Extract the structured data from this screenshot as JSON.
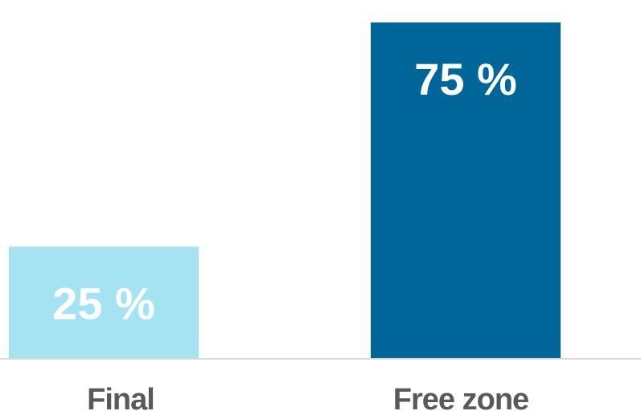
{
  "chart_data": {
    "type": "bar",
    "categories": [
      "Final",
      "Free zone"
    ],
    "values": [
      25,
      75
    ],
    "value_labels": [
      "25 %",
      "75 %"
    ],
    "unit": "%",
    "ylim": [
      0,
      80
    ],
    "grid": false,
    "legend": "none",
    "colors": [
      "#a6e3f2",
      "#006699"
    ],
    "axis_color": "#d9d9d9",
    "category_label_color": "#595959",
    "value_label_color": "#ffffff"
  }
}
